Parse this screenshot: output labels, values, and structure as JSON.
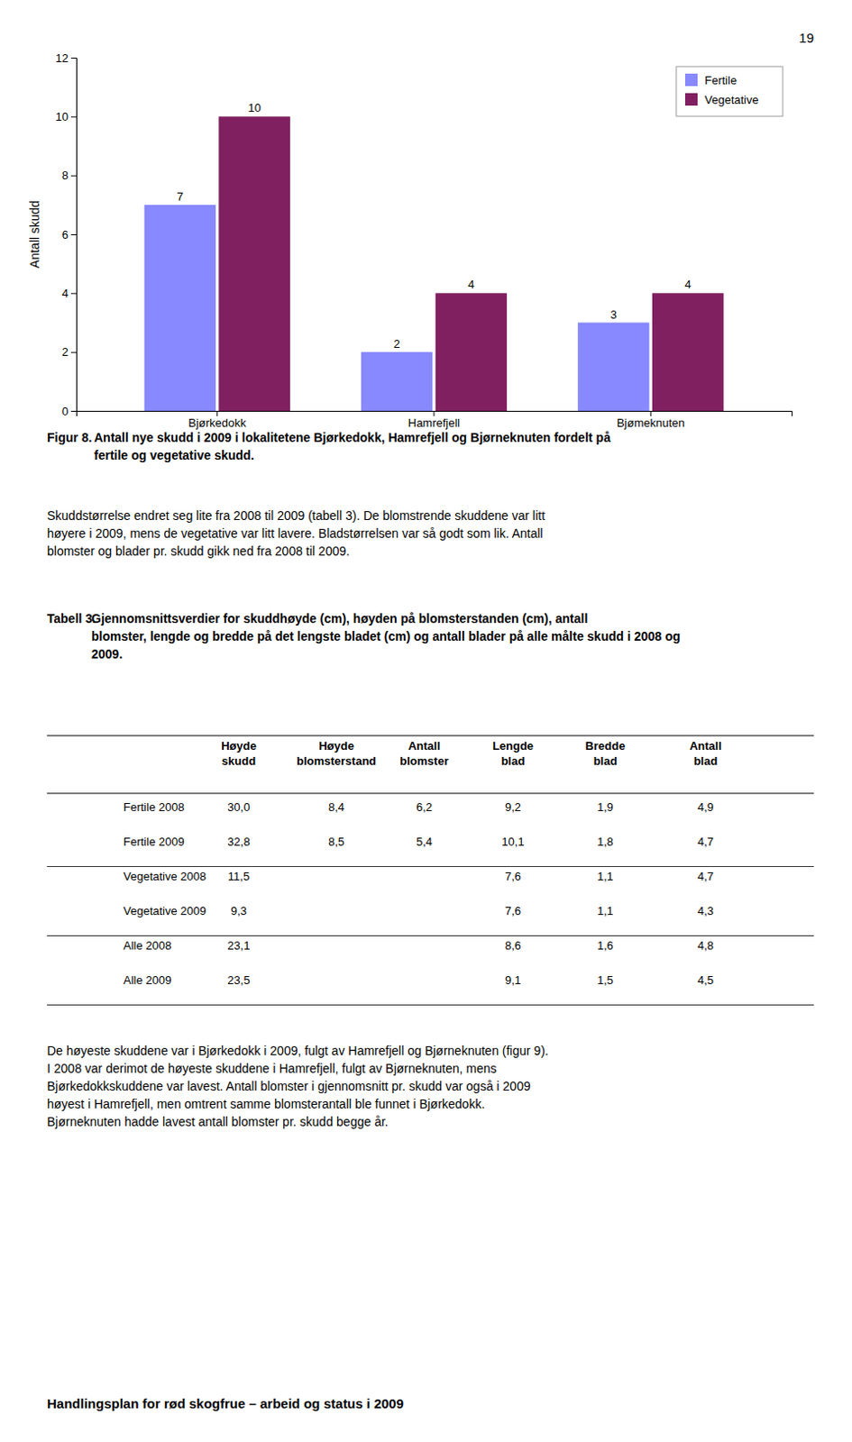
{
  "page_number": "19",
  "chart_data": {
    "type": "bar",
    "categories": [
      "Bjørkedokk",
      "Hamrefjell",
      "Bjømeknuten"
    ],
    "series": [
      {
        "name": "Fertile",
        "color": "#8888ff",
        "values": [
          7,
          2,
          3
        ]
      },
      {
        "name": "Vegetative",
        "color": "#802060",
        "values": [
          10,
          4,
          4
        ]
      }
    ],
    "ylabel": "Antall skudd",
    "ylim": [
      0,
      12
    ],
    "yticks": [
      0,
      2,
      4,
      6,
      8,
      10,
      12
    ],
    "data_labels": true,
    "legend": "upper right",
    "grid": false
  },
  "figure_caption": {
    "label": "Figur 8.",
    "text": " Antall nye skudd i 2009 i lokalitetene Bjørkedokk, Hamrefjell og Bjørneknuten fordelt på\nfertile og vegetative skudd."
  },
  "paragraphs": [
    "Skuddstørrelse endret seg lite fra 2008 til 2009 (tabell 3). De blomstrende skuddene var litt\nhøyere i 2009, mens de vegetative var litt lavere. Bladstørrelsen var så godt som lik. Antall\nblomster og blader pr. skudd gikk ned fra 2008 til 2009.",
    "De høyeste skuddene var i Bjørkedokk i 2009, fulgt av Hamrefjell og Bjørneknuten (figur 9).\nI 2008 var derimot de høyeste skuddene i Hamrefjell, fulgt av Bjørneknuten, mens\nBjørkedokkskuddene var lavest. Antall blomster i gjennomsnitt pr. skudd var også i 2009\nhøyest i Hamrefjell, men omtrent samme blomsterantall ble funnet i Bjørkedokk.\nBjørneknuten hadde lavest antall blomster pr. skudd begge år."
  ],
  "table": {
    "caption": {
      "label": "Tabell 3.",
      "text": " Gjennomsnittsverdier for skuddhøyde (cm), høyden på blomsterstanden (cm), antall\nblomster, lengde og bredde på det lengste bladet (cm) og antall blader på alle målte skudd i 2008 og\n2009."
    },
    "columns": [
      "Høyde\nskudd",
      "Høyde\nblomsterstand",
      "Antall\nblomster",
      "Lengde\nblad",
      "Bredde\nblad",
      "Antall\nblad"
    ],
    "rows": [
      {
        "label": "Fertile 2008",
        "cells": [
          "30,0",
          "8,4",
          "6,2",
          "9,2",
          "1,9",
          "4,9"
        ]
      },
      {
        "label": "Fertile 2009",
        "cells": [
          "32,8",
          "8,5",
          "5,4",
          "10,1",
          "1,8",
          "4,7"
        ]
      },
      {
        "label": "Vegetative 2008",
        "cells": [
          "11,5",
          null,
          null,
          "7,6",
          "1,1",
          "4,7"
        ]
      },
      {
        "label": "Vegetative 2009",
        "cells": [
          "9,3",
          null,
          null,
          "7,6",
          "1,1",
          "4,3"
        ]
      },
      {
        "label": "Alle 2008",
        "cells": [
          "23,1",
          null,
          null,
          "8,6",
          "1,6",
          "4,8"
        ]
      },
      {
        "label": "Alle 2009",
        "cells": [
          "23,5",
          null,
          null,
          "9,1",
          "1,5",
          "4,5"
        ]
      }
    ]
  },
  "footer": "Handlingsplan for rød skogfrue – arbeid og status i 2009"
}
